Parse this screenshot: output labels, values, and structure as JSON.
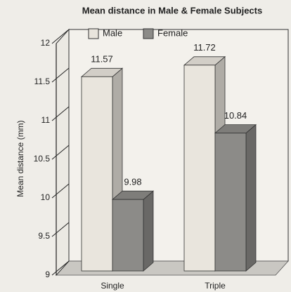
{
  "chart_data": {
    "type": "bar3d",
    "title": "Mean distance in Male & Female Subjects",
    "y_label": "Mean distance (mm)",
    "categories": [
      "Single",
      "Triple"
    ],
    "series": [
      {
        "name": "Male",
        "color": "#e9e5dd",
        "values": [
          11.57,
          11.72
        ]
      },
      {
        "name": "Female",
        "color": "#8c8b88",
        "values": [
          9.98,
          10.84
        ]
      }
    ],
    "ylim": [
      9,
      12
    ],
    "yticks": [
      9,
      9.5,
      10,
      10.5,
      11,
      11.5,
      12
    ]
  }
}
